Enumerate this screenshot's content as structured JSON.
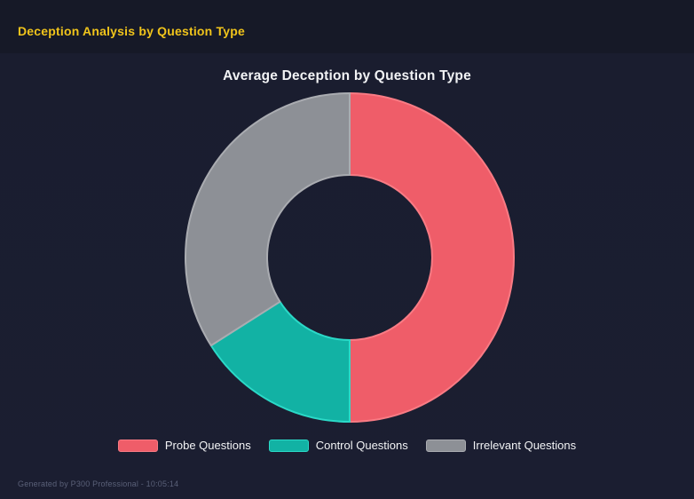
{
  "report": {
    "title": "Deception Analysis by Question Type",
    "footer": "Generated by P300 Professional - 10:05:14"
  },
  "chart_data": {
    "type": "pie",
    "subtype": "donut",
    "title": "Average Deception by Question Type",
    "categories": [
      "Probe Questions",
      "Control Questions",
      "Irrelevant Questions"
    ],
    "values": [
      50,
      16,
      34
    ],
    "values_are_percent_of_total": true,
    "colors": [
      "#ef5d69",
      "#12b2a4",
      "#8d9096"
    ],
    "border_colors": [
      "#f97b84",
      "#2bd9c7",
      "#aaacb1"
    ],
    "inner_radius_ratio": 0.5,
    "start_angle_deg": 0,
    "direction": "clockwise",
    "legend_position": "bottom",
    "grid": false
  },
  "theme": {
    "background_header": "#161927",
    "background_panel": "#1b1e30",
    "accent_yellow": "#f0c41b",
    "text_primary": "#f2f3f5",
    "text_muted": "#5a6078"
  }
}
